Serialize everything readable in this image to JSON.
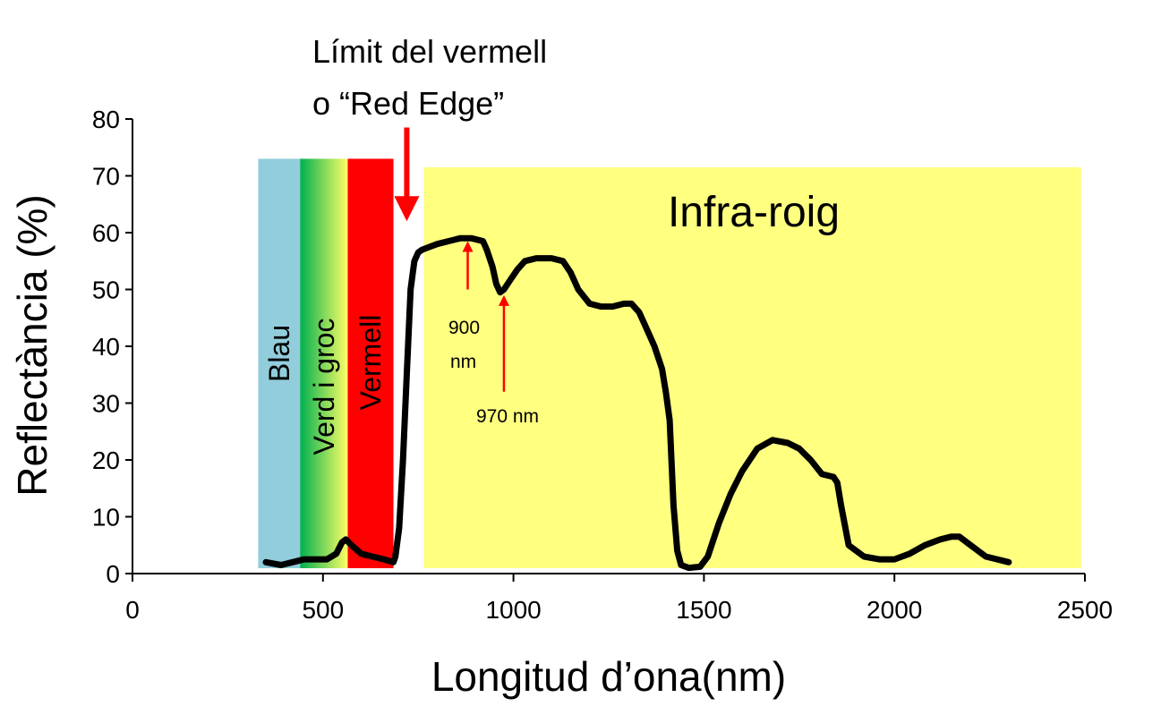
{
  "chart_data": {
    "type": "line",
    "title": "",
    "xlabel": "Longitud d’ona(nm)",
    "ylabel": "Reflectància (%)",
    "xlim": [
      0,
      2500
    ],
    "ylim": [
      0,
      80
    ],
    "xticks": [
      0,
      500,
      1000,
      1500,
      2000,
      2500
    ],
    "yticks": [
      0,
      10,
      20,
      30,
      40,
      50,
      60,
      70,
      80
    ],
    "grid": false,
    "bands": [
      {
        "label": "Blau",
        "x_start": 330,
        "x_end": 440,
        "y_top": 73,
        "color": "#92CDDC"
      },
      {
        "label": "Verd i groc",
        "x_start": 440,
        "x_end": 565,
        "y_top": 73,
        "color_start": "#00B050",
        "color_end": "#FFFF66"
      },
      {
        "label": "Vermell",
        "x_start": 565,
        "x_end": 685,
        "y_top": 73,
        "color": "#FF0000"
      },
      {
        "label": "Infra-roig",
        "x_start": 765,
        "x_end": 2490,
        "y_top": 71.5,
        "color": "#FFFF80"
      }
    ],
    "series": [
      {
        "color": "#000000",
        "x": [
          350,
          390,
          420,
          450,
          480,
          510,
          535,
          550,
          560,
          575,
          600,
          630,
          660,
          685,
          690,
          700,
          710,
          720,
          730,
          740,
          750,
          760,
          780,
          800,
          830,
          860,
          890,
          920,
          930,
          945,
          955,
          965,
          975,
          990,
          1010,
          1030,
          1060,
          1100,
          1130,
          1150,
          1170,
          1200,
          1230,
          1260,
          1290,
          1310,
          1330,
          1350,
          1370,
          1390,
          1400,
          1410,
          1420,
          1430,
          1440,
          1460,
          1490,
          1510,
          1540,
          1570,
          1600,
          1640,
          1680,
          1720,
          1750,
          1780,
          1810,
          1840,
          1850,
          1860,
          1880,
          1920,
          1960,
          2000,
          2040,
          2080,
          2120,
          2150,
          2170,
          2200,
          2240,
          2270,
          2300
        ],
        "y": [
          2,
          1.5,
          2,
          2.5,
          2.5,
          2.5,
          3.5,
          5.5,
          6,
          5,
          3.5,
          3,
          2.5,
          2,
          3,
          8,
          20,
          35,
          50,
          55,
          56.5,
          57,
          57.5,
          58,
          58.5,
          59,
          59,
          58.5,
          57,
          54,
          51,
          49.5,
          50,
          51.5,
          53.5,
          55,
          55.5,
          55.5,
          55,
          53,
          50,
          47.5,
          47,
          47,
          47.5,
          47.5,
          46,
          43,
          40,
          36,
          32,
          27,
          12,
          4,
          1.5,
          1,
          1.2,
          3,
          9,
          14,
          18,
          22,
          23.5,
          23,
          22,
          20,
          17.5,
          17,
          16,
          12,
          5,
          3,
          2.5,
          2.5,
          3.5,
          5,
          6,
          6.5,
          6.5,
          5,
          3,
          2.5,
          2
        ]
      }
    ],
    "annotations": [
      {
        "text_line1": "Límit del vermell",
        "text_line2": "o “Red Edge”",
        "arrow_x": 720,
        "arrow_from_y": 78.5,
        "arrow_to_y": 62,
        "color": "#FF0000"
      },
      {
        "text_line1": "900",
        "text_line2": "nm",
        "arrow_x": 880,
        "arrow_from_y": 50,
        "arrow_to_y": 58.5,
        "color": "#FF0000"
      },
      {
        "text_line1": "970 nm",
        "arrow_x": 975,
        "arrow_from_y": 32,
        "arrow_to_y": 49,
        "color": "#FF0000"
      }
    ]
  }
}
